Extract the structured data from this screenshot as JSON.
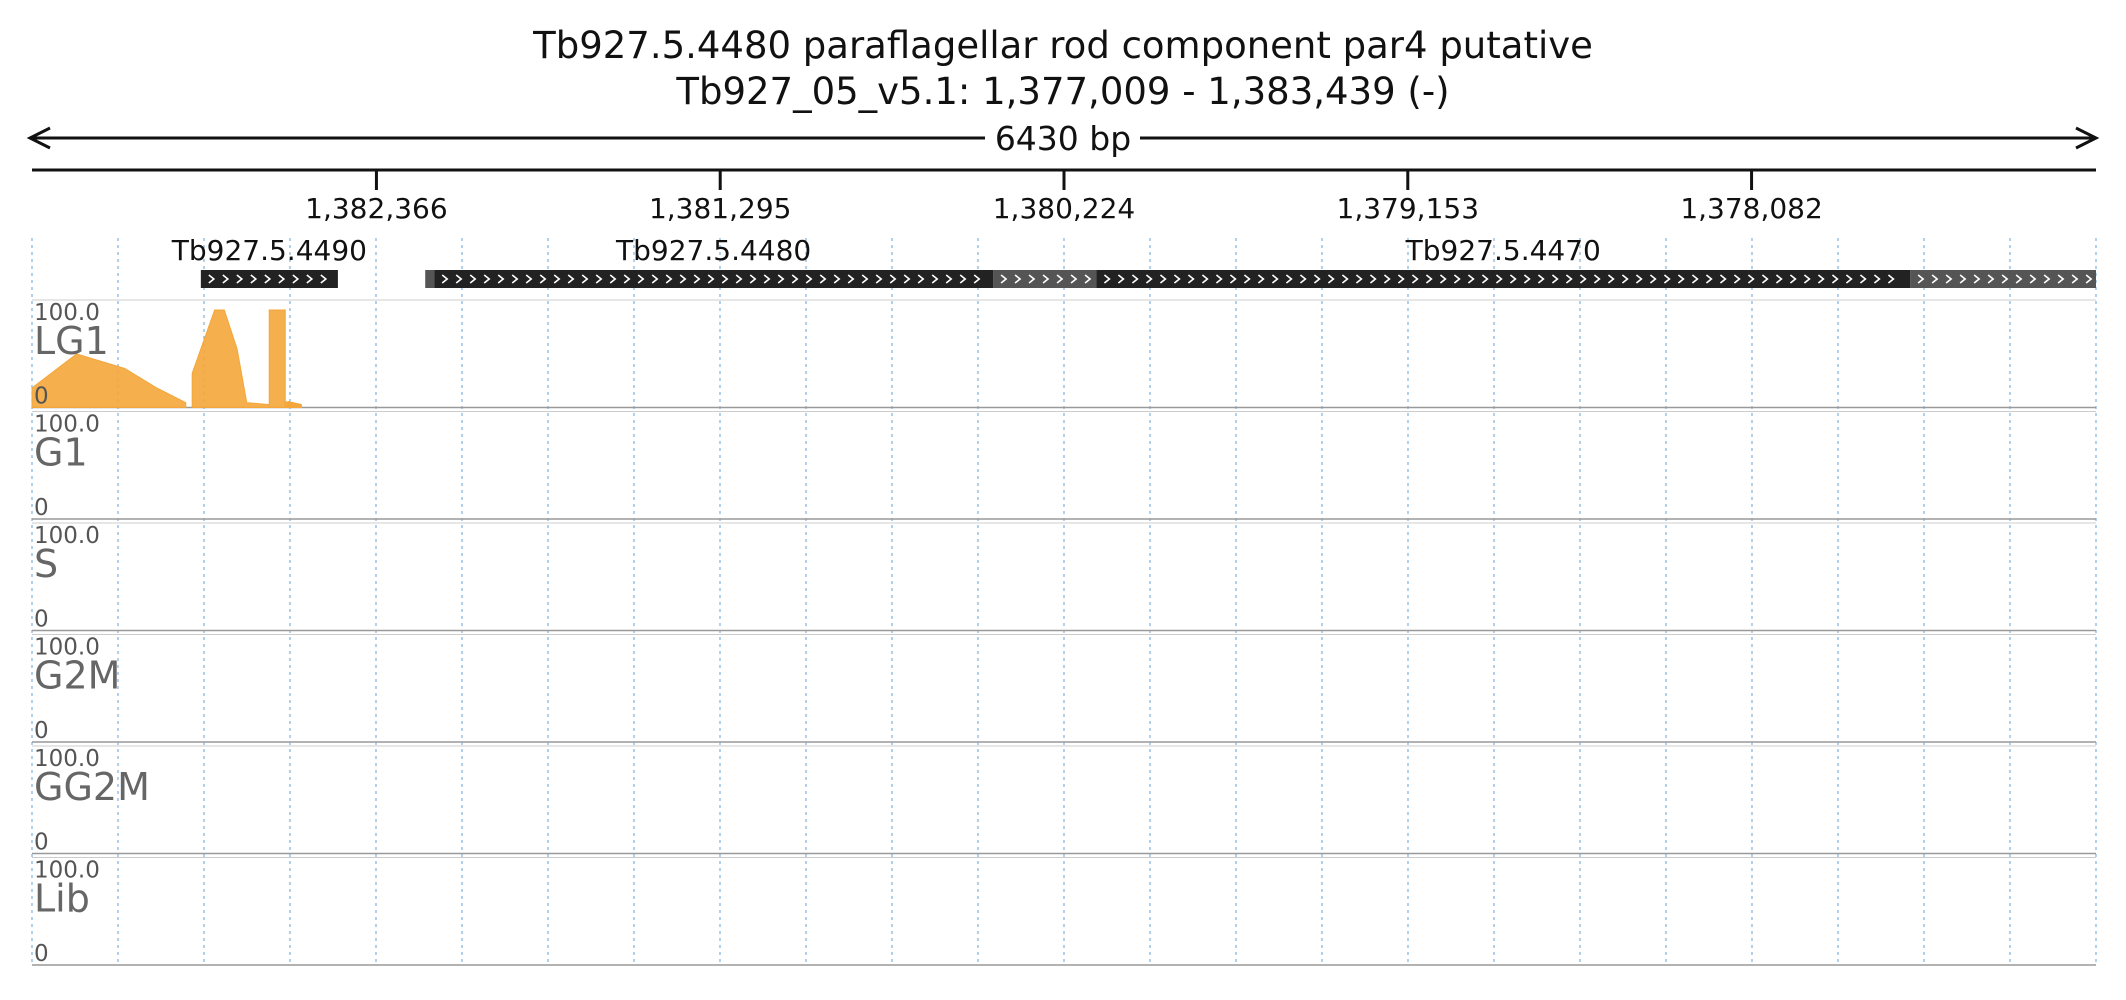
{
  "header": {
    "title": "Tb927.5.4480  paraflagellar rod component par4  putative",
    "locus": "Tb927_05_v5.1: 1,377,009 - 1,383,439 (-)",
    "span": "6430 bp"
  },
  "region": {
    "start": 1377009,
    "end": 1383439,
    "strand": "-"
  },
  "axis": {
    "ticks": [
      {
        "pos": 1382366,
        "label": "1,382,366"
      },
      {
        "pos": 1381295,
        "label": "1,381,295"
      },
      {
        "pos": 1380224,
        "label": "1,380,224"
      },
      {
        "pos": 1379153,
        "label": "1,379,153"
      },
      {
        "pos": 1378082,
        "label": "1,378,082"
      }
    ]
  },
  "genes": [
    {
      "name": "Tb927.5.4490",
      "cds": [
        1382913,
        1382486
      ],
      "utr": []
    },
    {
      "name": "Tb927.5.4480",
      "cds": [
        1382186,
        1380445
      ],
      "utr": [
        [
          1380445,
          1380123
        ],
        [
          1382214,
          1382186
        ]
      ]
    },
    {
      "name": "Tb927.5.4470",
      "cds": [
        1380123,
        1377588
      ],
      "utr": [
        [
          1377588,
          1377009
        ]
      ]
    }
  ],
  "chart_data": {
    "type": "area",
    "x_range": [
      1383439,
      1377009
    ],
    "ylim": [
      0,
      100
    ],
    "tracks": [
      {
        "name": "LG1",
        "ymax_label": "100.0",
        "ymin_label": "0",
        "color": "#f4a63a",
        "clip_color": "#e08b1a",
        "segments": [
          {
            "x": [
              1383439,
              1383300,
              1383150,
              1383050,
              1382960
            ],
            "y": [
              20,
              55,
              40,
              20,
              5
            ]
          },
          {
            "x": [
              1382940,
              1382870,
              1382840,
              1382800,
              1382770,
              1382700
            ],
            "y": [
              35,
              100,
              100,
              60,
              5,
              3
            ]
          },
          {
            "x": [
              1382700,
              1382650
            ],
            "y": [
              100,
              100
            ]
          },
          {
            "x": [
              1382650,
              1382620
            ],
            "y": [
              6,
              4
            ]
          },
          {
            "x": [
              1382650,
              1382600
            ],
            "y": [
              6,
              2
            ]
          },
          {
            "x": [
              1382640,
              1382600
            ],
            "y": [
              6,
              3
            ]
          },
          {
            "x": [
              1382650,
              1382640
            ],
            "y": [
              2,
              2
            ]
          },
          {
            "x": [
              1382640,
              1382620,
              1382650
            ],
            "y": [
              2,
              2,
              2
            ]
          },
          {
            "x": [
              1382640,
              1382630
            ],
            "y": [
              2,
              2
            ]
          },
          {
            "x": [
              1382650,
              1382630
            ],
            "y": [
              2,
              2
            ]
          },
          {
            "x": [
              1382640,
              1382630,
              1382620
            ],
            "y": [
              2,
              2,
              2
            ]
          },
          {
            "x": [
              1382650,
              1382620,
              1382610
            ],
            "y": [
              2,
              2,
              2
            ]
          },
          {
            "x": [
              1382650,
              1382640,
              1382630
            ],
            "y": [
              2,
              2,
              2
            ]
          },
          {
            "x": [
              1382650,
              1382640
            ],
            "y": [
              2,
              2
            ]
          },
          {
            "x": [
              1382650,
              1382630
            ],
            "y": [
              2,
              2
            ]
          },
          {
            "x": [
              1382650,
              1382630
            ],
            "y": [
              2,
              2
            ]
          },
          {
            "x": [
              1382650,
              1382640
            ],
            "y": [
              2,
              2
            ]
          },
          {
            "x": [
              1382650,
              1382640
            ],
            "y": [
              2,
              2
            ]
          },
          {
            "x": [
              1382650,
              1382620
            ],
            "y": [
              2,
              2
            ]
          },
          {
            "x": [
              1382650,
              1382630
            ],
            "y": [
              2,
              2
            ]
          },
          {
            "x": [
              1382650,
              1382640
            ],
            "y": [
              2,
              2
            ]
          },
          {
            "x": [
              1382650,
              1382630
            ],
            "y": [
              2,
              2
            ]
          },
          {
            "x": [
              1382650,
              1382640
            ],
            "y": [
              2,
              2
            ]
          },
          {
            "x": [
              1382650,
              1382640
            ],
            "y": [
              2,
              2
            ]
          },
          {
            "x": [
              1382650,
              1382640
            ],
            "y": [
              2,
              2
            ]
          },
          {
            "x": [
              1382650,
              1382630
            ],
            "y": [
              2,
              2
            ]
          },
          {
            "x": [
              1382650,
              1382640
            ],
            "y": [
              2,
              2
            ]
          },
          {
            "x": [
              1382650,
              1382620
            ],
            "y": [
              2,
              2
            ]
          },
          {
            "x": [
              1382650,
              1382640
            ],
            "y": [
              2,
              2
            ]
          },
          {
            "x": [
              1382650,
              1382630
            ],
            "y": [
              2,
              2
            ]
          },
          {
            "x": [
              1382650,
              1382640
            ],
            "y": [
              2,
              2
            ]
          },
          {
            "x": [
              1382650,
              1382630
            ],
            "y": [
              2,
              2
            ]
          },
          {
            "x": [
              1382650,
              1382640
            ],
            "y": [
              2,
              2
            ]
          },
          {
            "x": [
              1382650,
              1382630
            ],
            "y": [
              2,
              2
            ]
          },
          {
            "x": [
              1382650,
              1382640
            ],
            "y": [
              2,
              2
            ]
          },
          {
            "x": [
              1382650,
              1382640
            ],
            "y": [
              2,
              2
            ]
          },
          {
            "x": [
              1382650,
              1382640
            ],
            "y": [
              2,
              2
            ]
          },
          {
            "x": [
              1382650,
              1382640
            ],
            "y": [
              2,
              2
            ]
          },
          {
            "x": [
              1382650,
              1382640
            ],
            "y": [
              2,
              2
            ]
          },
          {
            "x": [
              1382650,
              1382640
            ],
            "y": [
              2,
              2
            ]
          }
        ]
      },
      {
        "name": "G1",
        "ymax_label": "100.0",
        "ymin_label": "0",
        "color": "#b07cc0",
        "clip_color": "#8e4fa3",
        "segments": []
      },
      {
        "name": "S",
        "ymax_label": "100.0",
        "ymin_label": "0",
        "color": "#6cc06a",
        "clip_color": "#c0392b",
        "segments": []
      },
      {
        "name": "G2M",
        "ymax_label": "100.0",
        "ymin_label": "0",
        "color": "#6aaee0",
        "clip_color": "#c0392b",
        "segments": []
      },
      {
        "name": "GG2M",
        "ymax_label": "100.0",
        "ymin_label": "0",
        "color": "#f28cbc",
        "clip_color": "#c0392b",
        "segments": []
      },
      {
        "name": "Lib",
        "ymax_label": "100.0",
        "ymin_label": "0",
        "color": "#e0d05a",
        "clip_color": "#c0392b",
        "segments": []
      }
    ]
  }
}
